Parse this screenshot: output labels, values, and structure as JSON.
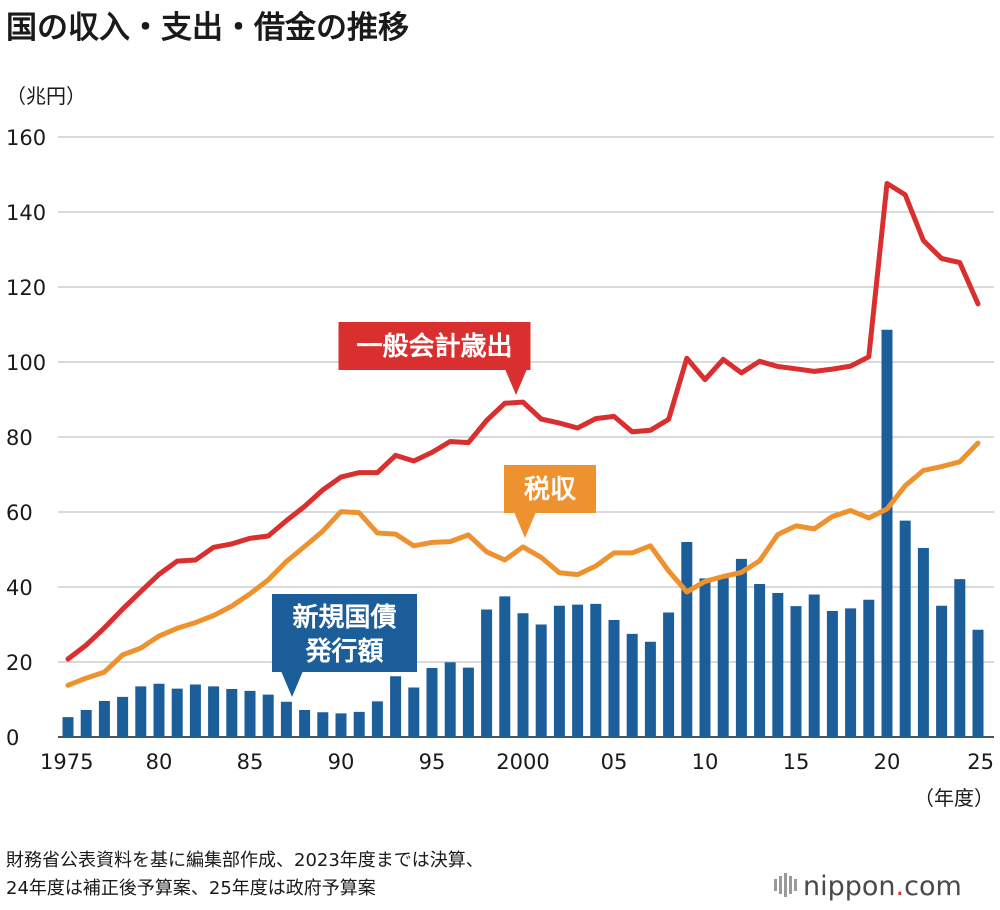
{
  "title": "国の収入・支出・借金の推移",
  "unit_label": "（兆円）",
  "x_unit_label": "（年度）",
  "source_lines": [
    "財務省公表資料を基に編集部作成、2023年度までは決算、",
    "24年度は補正後予算案、25年度は政府予算案"
  ],
  "logo": {
    "text": "nippon",
    "dot": ".",
    "suffix": "com"
  },
  "colors": {
    "expenditure": "#d9302f",
    "tax": "#ee9230",
    "bonds": "#1c5e9a",
    "grid": "#b4b4b4"
  },
  "chart_data": {
    "type": "bar+line",
    "title": "国の収入・支出・借金の推移",
    "ylabel": "（兆円）",
    "xlabel": "（年度）",
    "ylim": [
      0,
      160
    ],
    "yticks": [
      0,
      20,
      40,
      60,
      80,
      100,
      120,
      140,
      160
    ],
    "grid": true,
    "x": [
      1975,
      1976,
      1977,
      1978,
      1979,
      1980,
      1981,
      1982,
      1983,
      1984,
      1985,
      1986,
      1987,
      1988,
      1989,
      1990,
      1991,
      1992,
      1993,
      1994,
      1995,
      1996,
      1997,
      1998,
      1999,
      2000,
      2001,
      2002,
      2003,
      2004,
      2005,
      2006,
      2007,
      2008,
      2009,
      2010,
      2011,
      2012,
      2013,
      2014,
      2015,
      2016,
      2017,
      2018,
      2019,
      2020,
      2021,
      2022,
      2023,
      2024,
      2025
    ],
    "xticks": [
      {
        "year": 1975,
        "label": "1975"
      },
      {
        "year": 1980,
        "label": "80"
      },
      {
        "year": 1985,
        "label": "85"
      },
      {
        "year": 1990,
        "label": "90"
      },
      {
        "year": 1995,
        "label": "95"
      },
      {
        "year": 2000,
        "label": "2000"
      },
      {
        "year": 2005,
        "label": "05"
      },
      {
        "year": 2010,
        "label": "10"
      },
      {
        "year": 2015,
        "label": "15"
      },
      {
        "year": 2020,
        "label": "20"
      },
      {
        "year": 2025,
        "label": "25"
      }
    ],
    "series": [
      {
        "name": "新規国債発行額",
        "label_lines": [
          "新規国債",
          "発行額"
        ],
        "type": "bar",
        "values": [
          5.3,
          7.2,
          9.6,
          10.7,
          13.5,
          14.2,
          12.9,
          14.0,
          13.5,
          12.8,
          12.3,
          11.3,
          9.4,
          7.2,
          6.6,
          6.3,
          6.7,
          9.5,
          16.2,
          13.2,
          18.4,
          19.9,
          18.5,
          34.0,
          37.5,
          33.0,
          30.0,
          35.0,
          35.3,
          35.5,
          31.2,
          27.5,
          25.4,
          33.2,
          52.0,
          42.3,
          42.8,
          47.5,
          40.8,
          38.4,
          34.9,
          38.0,
          33.6,
          34.3,
          36.6,
          108.6,
          57.7,
          50.4,
          35.0,
          42.1,
          28.6
        ]
      },
      {
        "name": "一般会計歳出",
        "type": "line",
        "values": [
          20.8,
          24.5,
          29.1,
          34.1,
          38.8,
          43.4,
          46.9,
          47.2,
          50.6,
          51.5,
          53.0,
          53.6,
          57.7,
          61.5,
          65.9,
          69.3,
          70.5,
          70.5,
          75.1,
          73.6,
          75.9,
          78.8,
          78.5,
          84.4,
          89.0,
          89.3,
          84.8,
          83.7,
          82.4,
          84.9,
          85.5,
          81.4,
          81.8,
          84.7,
          101.0,
          95.3,
          100.7,
          97.1,
          100.2,
          98.8,
          98.2,
          97.5,
          98.1,
          98.9,
          101.4,
          147.6,
          144.6,
          132.4,
          127.6,
          126.5,
          115.5
        ]
      },
      {
        "name": "税収",
        "type": "line",
        "values": [
          13.8,
          15.7,
          17.3,
          21.9,
          23.7,
          26.9,
          29.0,
          30.5,
          32.4,
          34.9,
          38.2,
          41.9,
          46.8,
          50.8,
          54.9,
          60.1,
          59.8,
          54.4,
          54.1,
          51.0,
          51.9,
          52.1,
          53.9,
          49.4,
          47.2,
          50.7,
          47.9,
          43.8,
          43.3,
          45.6,
          49.1,
          49.1,
          51.0,
          44.3,
          38.7,
          41.5,
          42.8,
          43.9,
          47.0,
          54.0,
          56.3,
          55.5,
          58.8,
          60.4,
          58.4,
          60.8,
          67.0,
          71.1,
          72.1,
          73.4,
          78.4
        ]
      }
    ]
  }
}
